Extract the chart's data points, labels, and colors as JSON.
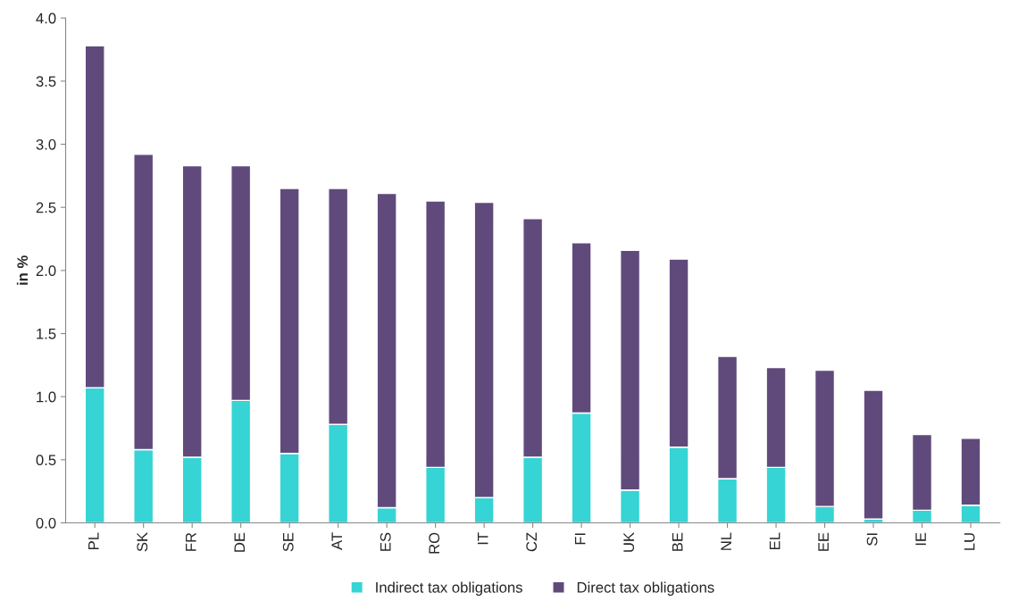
{
  "chart_data": {
    "type": "bar",
    "stacked": true,
    "ylabel": "in %",
    "categories": [
      "PL",
      "SK",
      "FR",
      "DE",
      "SE",
      "AT",
      "ES",
      "RO",
      "IT",
      "CZ",
      "FI",
      "UK",
      "BE",
      "NL",
      "EL",
      "EE",
      "SI",
      "IE",
      "LU"
    ],
    "series": [
      {
        "name": "Indirect tax obligations",
        "color": "#36d4d4",
        "values": [
          1.07,
          0.58,
          0.52,
          0.97,
          0.55,
          0.78,
          0.12,
          0.44,
          0.2,
          0.52,
          0.87,
          0.26,
          0.6,
          0.35,
          0.44,
          0.13,
          0.03,
          0.1,
          0.14
        ]
      },
      {
        "name": "Direct tax obligations",
        "color": "#604a7b",
        "values": [
          2.71,
          2.34,
          2.31,
          1.86,
          2.1,
          1.87,
          2.49,
          2.11,
          2.34,
          1.89,
          1.35,
          1.9,
          1.49,
          0.97,
          0.79,
          1.08,
          1.02,
          0.6,
          0.53
        ]
      }
    ],
    "ylim": [
      0,
      4.0
    ],
    "yticks": [
      {
        "value": 0,
        "label": "0.0"
      },
      {
        "value": 0.5,
        "label": "0.5"
      },
      {
        "value": 1,
        "label": "1.0"
      },
      {
        "value": 1.5,
        "label": "1.5"
      },
      {
        "value": 2,
        "label": "2.0"
      },
      {
        "value": 2.5,
        "label": "2.5"
      },
      {
        "value": 3,
        "label": "3.0"
      },
      {
        "value": 3.5,
        "label": "3.5"
      },
      {
        "value": 4,
        "label": "4.0"
      }
    ],
    "grid": false,
    "legend": "bottom"
  }
}
